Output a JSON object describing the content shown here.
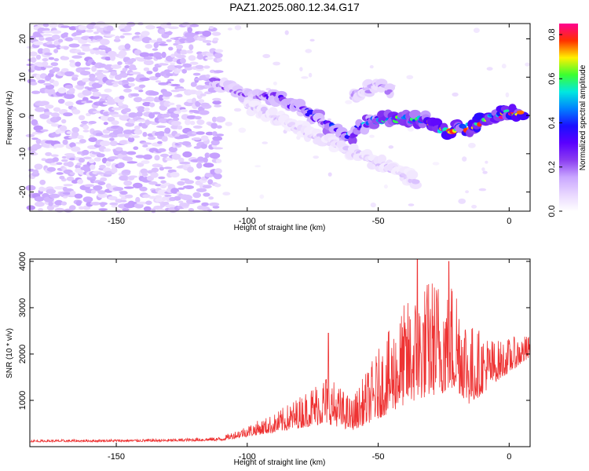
{
  "title": "PAZ1.2025.080.12.34.G17",
  "colors": {
    "snr_line": "#ee3333",
    "colormap": [
      "#ffffff",
      "#e8d6ff",
      "#c9a6ff",
      "#8a3cf0",
      "#5a00ff",
      "#1a10ff",
      "#0080ff",
      "#00e8e0",
      "#3cff30",
      "#fff000",
      "#ff3000",
      "#ff0090"
    ]
  },
  "chart_data": [
    {
      "type": "heatmap",
      "title": "",
      "xlabel": "Height of straight line (km)",
      "ylabel": "Frequency (Hz)",
      "xlim": [
        -183,
        8
      ],
      "ylim": [
        -25,
        24
      ],
      "xticks": [
        -150,
        -100,
        -50,
        0
      ],
      "yticks": [
        20,
        10,
        0,
        -10,
        -20
      ],
      "colorbar": {
        "label": "Normalized spectral amplitude",
        "range": [
          0,
          0.85
        ],
        "ticks": [
          "0.0",
          "0.2",
          "0.4",
          "0.6",
          "0.8"
        ]
      },
      "features": [
        {
          "name": "noise",
          "x_range": [
            -183,
            -110
          ],
          "y_range": [
            -25,
            24
          ],
          "amplitude": 0.12
        },
        {
          "name": "track",
          "points": [
            [
              -113,
              9
            ],
            [
              -100,
              5
            ],
            [
              -90,
              5
            ],
            [
              -80,
              2
            ],
            [
              -70,
              -2
            ],
            [
              -62,
              -6
            ],
            [
              -55,
              -2
            ],
            [
              -48,
              -1
            ],
            [
              -40,
              -1
            ],
            [
              -32,
              -1
            ],
            [
              -25,
              -4
            ],
            [
              -15,
              -3
            ],
            [
              -5,
              0
            ],
            [
              5,
              1
            ]
          ],
          "amplitude_start": 0.2,
          "amplitude_end": 0.85
        },
        {
          "name": "lower-branch",
          "points": [
            [
              -100,
              3
            ],
            [
              -85,
              -2
            ],
            [
              -75,
              -5
            ],
            [
              -65,
              -8
            ],
            [
              -55,
              -11
            ],
            [
              -45,
              -14
            ],
            [
              -35,
              -17
            ]
          ],
          "amplitude": 0.12
        },
        {
          "name": "upper-branch",
          "points": [
            [
              -60,
              5
            ],
            [
              -50,
              8
            ],
            [
              -45,
              6
            ]
          ],
          "amplitude": 0.18
        }
      ]
    },
    {
      "type": "line",
      "title": "",
      "xlabel": "Height of straight line (km)",
      "ylabel": "SNR (10 * v/v)",
      "xlim": [
        -183,
        8
      ],
      "ylim": [
        0,
        4050
      ],
      "xticks": [
        -150,
        -100,
        -50,
        0
      ],
      "yticks": [
        1000,
        2000,
        3000,
        4000
      ],
      "envelope": [
        {
          "x": -183,
          "base": 100,
          "spread": 50
        },
        {
          "x": -130,
          "base": 110,
          "spread": 60
        },
        {
          "x": -110,
          "base": 130,
          "spread": 80
        },
        {
          "x": -100,
          "base": 220,
          "spread": 250
        },
        {
          "x": -90,
          "base": 300,
          "spread": 400
        },
        {
          "x": -80,
          "base": 400,
          "spread": 700
        },
        {
          "x": -70,
          "base": 500,
          "spread": 1100
        },
        {
          "x": -60,
          "base": 350,
          "spread": 700
        },
        {
          "x": -50,
          "base": 600,
          "spread": 1500
        },
        {
          "x": -40,
          "base": 900,
          "spread": 2200
        },
        {
          "x": -30,
          "base": 1100,
          "spread": 2600
        },
        {
          "x": -20,
          "base": 1200,
          "spread": 2500
        },
        {
          "x": -15,
          "base": 900,
          "spread": 1800
        },
        {
          "x": -5,
          "base": 1400,
          "spread": 900
        },
        {
          "x": 5,
          "base": 1800,
          "spread": 600
        },
        {
          "x": 8,
          "base": 1900,
          "spread": 500
        }
      ],
      "peaks": [
        {
          "x": -69,
          "y": 2450
        },
        {
          "x": -35,
          "y": 4050
        },
        {
          "x": -23,
          "y": 4000
        }
      ]
    }
  ]
}
